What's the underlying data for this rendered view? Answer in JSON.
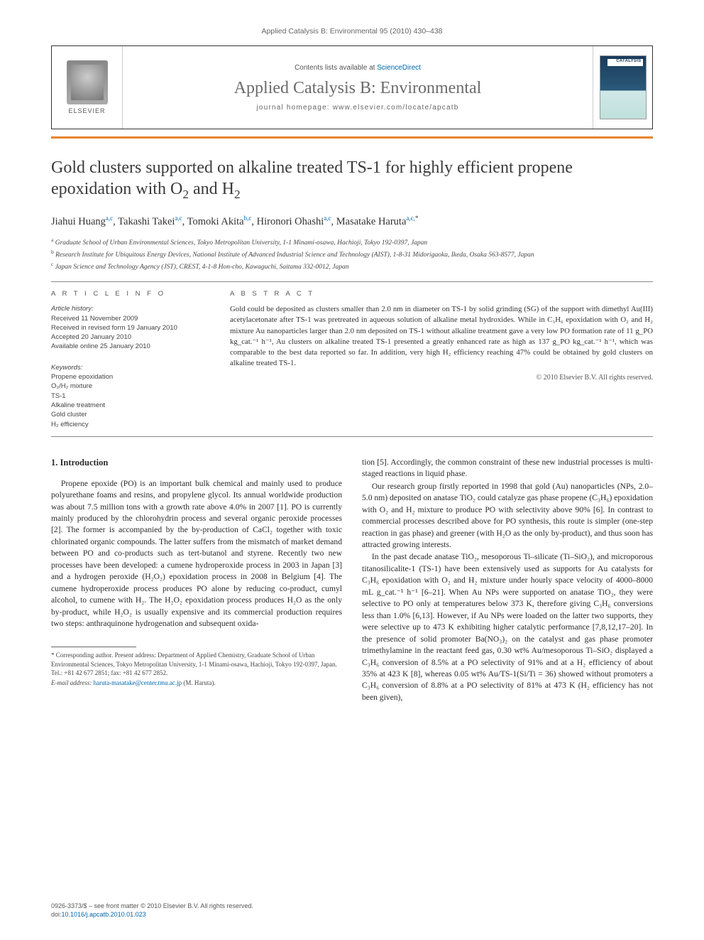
{
  "running_head": "Applied Catalysis B: Environmental 95 (2010) 430–438",
  "masthead": {
    "contents_prefix": "Contents lists available at ",
    "contents_link": "ScienceDirect",
    "journal": "Applied Catalysis B: Environmental",
    "homepage_prefix": "journal homepage: ",
    "homepage": "www.elsevier.com/locate/apcatb",
    "publisher": "ELSEVIER",
    "cover_label": "CATALYSIS"
  },
  "title_parts": {
    "p1": "Gold clusters supported on alkaline treated TS-1 for highly efficient propene epoxidation with O",
    "p2": " and H"
  },
  "authors": [
    {
      "name": "Jiahui Huang",
      "aff": "a,c"
    },
    {
      "name": "Takashi Takei",
      "aff": "a,c"
    },
    {
      "name": "Tomoki Akita",
      "aff": "b,c"
    },
    {
      "name": "Hironori Ohashi",
      "aff": "a,c"
    },
    {
      "name": "Masatake Haruta",
      "aff": "a,c,",
      "corr": true
    }
  ],
  "affiliations": {
    "a": "Graduate School of Urban Environmental Sciences, Tokyo Metropolitan University, 1-1 Minami-osawa, Hachioji, Tokyo 192-0397, Japan",
    "b": "Research Institute for Ubiquitous Energy Devices, National Institute of Advanced Industrial Science and Technology (AIST), 1-8-31 Midorigaoka, Ikeda, Osaka 563-8577, Japan",
    "c": "Japan Science and Technology Agency (JST), CREST, 4-1-8 Hon-cho, Kawaguchi, Saitama 332-0012, Japan"
  },
  "info": {
    "heading": "A R T I C L E   I N F O",
    "history_heading": "Article history:",
    "history": [
      "Received 11 November 2009",
      "Received in revised form 19 January 2010",
      "Accepted 20 January 2010",
      "Available online 25 January 2010"
    ],
    "keywords_heading": "Keywords:",
    "keywords": [
      "Propene epoxidation",
      "O₂/H₂ mixture",
      "TS-1",
      "Alkaline treatment",
      "Gold cluster",
      "H₂ efficiency"
    ]
  },
  "abstract": {
    "heading": "A B S T R A C T",
    "text": "Gold could be deposited as clusters smaller than 2.0 nm in diameter on TS-1 by solid grinding (SG) of the support with dimethyl Au(III) acetylacetonate after TS-1 was pretreated in aqueous solution of alkaline metal hydroxides. While in C₃H₆ epoxidation with O₂ and H₂ mixture Au nanoparticles larger than 2.0 nm deposited on TS-1 without alkaline treatment gave a very low PO formation rate of 11 g_PO kg_cat.⁻¹ h⁻¹, Au clusters on alkaline treated TS-1 presented a greatly enhanced rate as high as 137 g_PO kg_cat.⁻¹ h⁻¹, which was comparable to the best data reported so far. In addition, very high H₂ efficiency reaching 47% could be obtained by gold clusters on alkaline treated TS-1.",
    "copyright": "© 2010 Elsevier B.V. All rights reserved."
  },
  "section1": {
    "heading": "1. Introduction",
    "para1": "Propene epoxide (PO) is an important bulk chemical and mainly used to produce polyurethane foams and resins, and propylene glycol. Its annual worldwide production was about 7.5 million tons with a growth rate above 4.0% in 2007 [1]. PO is currently mainly produced by the chlorohydrin process and several organic peroxide processes [2]. The former is accompanied by the by-production of CaCl₂ together with toxic chlorinated organic compounds. The latter suffers from the mismatch of market demand between PO and co-products such as tert-butanol and styrene. Recently two new processes have been developed: a cumene hydroperoxide process in 2003 in Japan [3] and a hydrogen peroxide (H₂O₂) epoxidation process in 2008 in Belgium [4]. The cumene hydroperoxide process produces PO alone by reducing co-product, cumyl alcohol, to cumene with H₂. The H₂O₂ epoxidation process produces H₂O as the only by-product, while H₂O₂ is usually expensive and its commercial production requires two steps: anthraquinone hydrogenation and subsequent oxida-",
    "para2": "tion [5]. Accordingly, the common constraint of these new industrial processes is multi-staged reactions in liquid phase.",
    "para3": "Our research group firstly reported in 1998 that gold (Au) nanoparticles (NPs, 2.0–5.0 nm) deposited on anatase TiO₂ could catalyze gas phase propene (C₃H₆) epoxidation with O₂ and H₂ mixture to produce PO with selectivity above 90% [6]. In contrast to commercial processes described above for PO synthesis, this route is simpler (one-step reaction in gas phase) and greener (with H₂O as the only by-product), and thus soon has attracted growing interests.",
    "para4": "In the past decade anatase TiO₂, mesoporous Ti–silicate (Ti–SiO₂), and microporous titanosilicalite-1 (TS-1) have been extensively used as supports for Au catalysts for C₃H₆ epoxidation with O₂ and H₂ mixture under hourly space velocity of 4000–8000 mL g_cat.⁻¹ h⁻¹ [6–21]. When Au NPs were supported on anatase TiO₂, they were selective to PO only at temperatures below 373 K, therefore giving C₃H₆ conversions less than 1.0% [6,13]. However, if Au NPs were loaded on the latter two supports, they were selective up to 473 K exhibiting higher catalytic performance [7,8,12,17–20]. In the presence of solid promoter Ba(NO₃)₂ on the catalyst and gas phase promoter trimethylamine in the reactant feed gas, 0.30 wt% Au/mesoporous Ti–SiO₂ displayed a C₃H₆ conversion of 8.5% at a PO selectivity of 91% and at a H₂ efficiency of about 35% at 423 K [8], whereas 0.05 wt% Au/TS-1(Si/Ti = 36) showed without promoters a C₃H₆ conversion of 8.8% at a PO selectivity of 81% at 473 K (H₂ efficiency has not been given),"
  },
  "footnotes": {
    "corr": "* Corresponding author. Present address: Department of Applied Chemistry, Graduate School of Urban Environmental Sciences, Tokyo Metropolitan University, 1-1 Minami-osawa, Hachioji, Tokyo 192-0397, Japan. Tel.: +81 42 677 2851; fax: +81 42 677 2852.",
    "email_label": "E-mail address:",
    "email": "haruta-masatake@center.tmu.ac.jp",
    "email_suffix": " (M. Haruta)."
  },
  "footer": {
    "line1": "0926-3373/$ – see front matter © 2010 Elsevier B.V. All rights reserved.",
    "doi_label": "doi:",
    "doi": "10.1016/j.apcatb.2010.01.023"
  },
  "colors": {
    "accent": "#e8832b",
    "link": "#0066aa",
    "text": "#2a2a2a",
    "muted": "#666666"
  }
}
